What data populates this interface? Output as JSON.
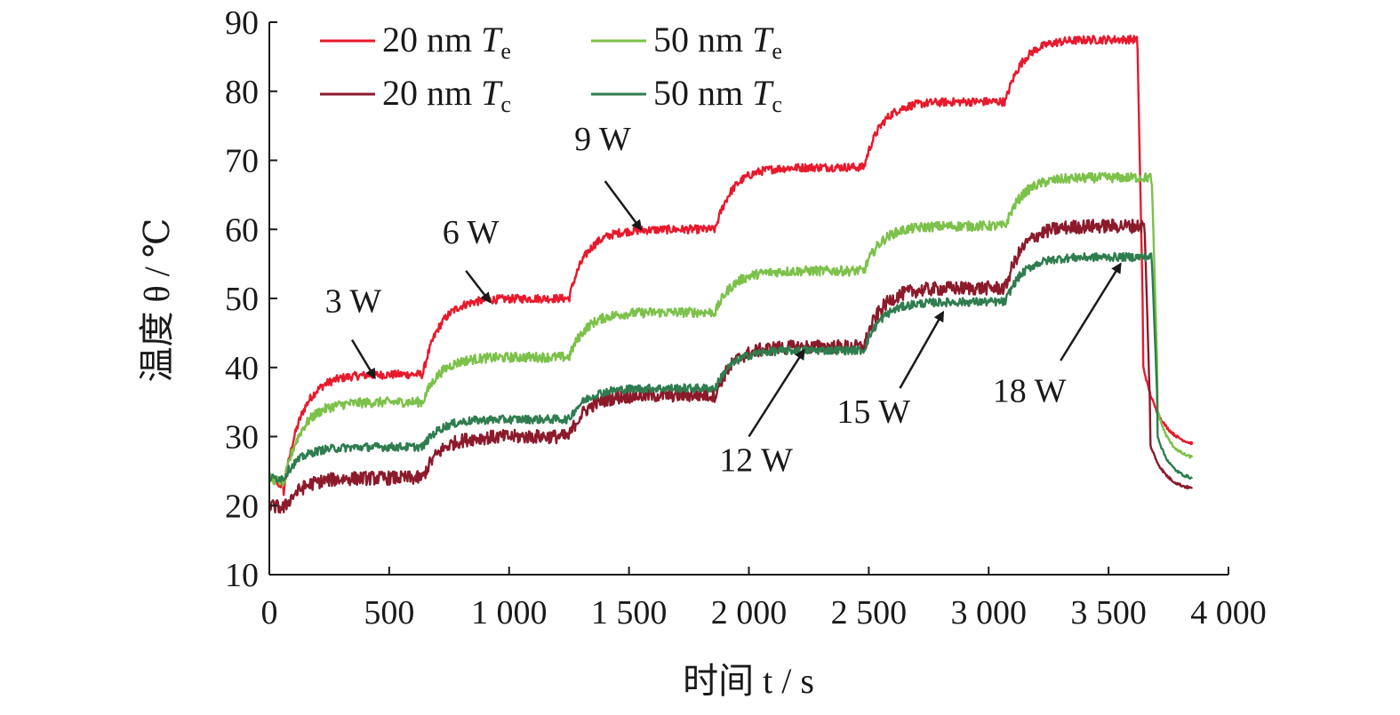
{
  "chart_data": {
    "type": "line",
    "xlabel": "时间 t / s",
    "ylabel": "温度 θ / ℃",
    "xlim": [
      0,
      4000
    ],
    "ylim": [
      10,
      90
    ],
    "x_ticks": [
      0,
      500,
      1000,
      1500,
      2000,
      2500,
      3000,
      3500,
      4000
    ],
    "x_tick_labels": [
      "0",
      "500",
      "1 000",
      "1 500",
      "2 000",
      "2 500",
      "3 000",
      "3 500",
      "4 000"
    ],
    "y_ticks": [
      10,
      20,
      30,
      40,
      50,
      60,
      70,
      80,
      90
    ],
    "y_tick_labels": [
      "10",
      "20",
      "30",
      "40",
      "50",
      "60",
      "70",
      "80",
      "90"
    ],
    "grid": false,
    "legend_position": "top-left",
    "legend": [
      {
        "prefix": "20 nm ",
        "var": "T",
        "sub": "e",
        "color": "#e8192c"
      },
      {
        "prefix": "50 nm ",
        "var": "T",
        "sub": "e",
        "color": "#7cc14a"
      },
      {
        "prefix": "20 nm ",
        "var": "T",
        "sub": "c",
        "color": "#8b1a2b"
      },
      {
        "prefix": "50 nm ",
        "var": "T",
        "sub": "c",
        "color": "#2f7d4f"
      }
    ],
    "series": [
      {
        "name": "20 nm Te",
        "color": "#e8192c",
        "noise": 0.6,
        "steps": [
          [
            0,
            24
          ],
          [
            60,
            22
          ],
          [
            640,
            39
          ],
          [
            1250,
            50
          ],
          [
            1860,
            60
          ],
          [
            2480,
            69
          ],
          [
            3070,
            78.5
          ],
          [
            3620,
            87.5
          ]
        ],
        "cooldown": {
          "t_end": 3850,
          "plunge_to": 45,
          "final": 29
        }
      },
      {
        "name": "50 nm Te",
        "color": "#7cc14a",
        "noise": 0.7,
        "steps": [
          [
            0,
            24
          ],
          [
            60,
            23
          ],
          [
            640,
            35
          ],
          [
            1250,
            41.5
          ],
          [
            1860,
            48
          ],
          [
            2480,
            54
          ],
          [
            3070,
            60.5
          ],
          [
            3680,
            67.5
          ]
        ],
        "cooldown": {
          "t_end": 3850,
          "plunge_to": 38,
          "final": 27
        }
      },
      {
        "name": "20 nm Tc",
        "color": "#8b1a2b",
        "noise": 1.0,
        "steps": [
          [
            0,
            20
          ],
          [
            60,
            19.5
          ],
          [
            640,
            24
          ],
          [
            1250,
            30
          ],
          [
            1860,
            36
          ],
          [
            2480,
            43
          ],
          [
            3070,
            51.5
          ],
          [
            3650,
            60.5
          ]
        ],
        "cooldown": {
          "t_end": 3850,
          "plunge_to": 32,
          "final": 22.5
        }
      },
      {
        "name": "50 nm Tc",
        "color": "#2f7d4f",
        "noise": 0.6,
        "steps": [
          [
            0,
            24
          ],
          [
            60,
            24
          ],
          [
            640,
            28.5
          ],
          [
            1250,
            32.5
          ],
          [
            1860,
            37
          ],
          [
            2480,
            42.5
          ],
          [
            3070,
            49.5
          ],
          [
            3680,
            56
          ]
        ],
        "cooldown": {
          "t_end": 3850,
          "plunge_to": 34,
          "final": 24
        }
      }
    ],
    "annotations": [
      {
        "text": "3 W",
        "label_at": [
          350,
          48
        ],
        "arrow_from": [
          345,
          44
        ],
        "arrow_to": [
          440,
          38.5
        ]
      },
      {
        "text": "6 W",
        "label_at": [
          840,
          58
        ],
        "arrow_from": [
          820,
          54
        ],
        "arrow_to": [
          920,
          49.5
        ]
      },
      {
        "text": "9 W",
        "label_at": [
          1390,
          71.5
        ],
        "arrow_from": [
          1400,
          67
        ],
        "arrow_to": [
          1550,
          60
        ]
      },
      {
        "text": "12 W",
        "label_at": [
          2030,
          25
        ],
        "arrow_from": [
          2000,
          30
        ],
        "arrow_to": [
          2230,
          42.5
        ]
      },
      {
        "text": "15 W",
        "label_at": [
          2520,
          32
        ],
        "arrow_from": [
          2630,
          37
        ],
        "arrow_to": [
          2810,
          48
        ]
      },
      {
        "text": "18 W",
        "label_at": [
          3170,
          35
        ],
        "arrow_from": [
          3300,
          41
        ],
        "arrow_to": [
          3550,
          55
        ]
      }
    ]
  }
}
